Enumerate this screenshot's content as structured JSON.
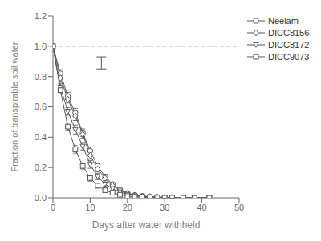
{
  "chart_data": {
    "type": "line",
    "xlabel": "Days after water withheld",
    "ylabel": "Fraction of transpirable soil water",
    "xlim": [
      0,
      50
    ],
    "ylim": [
      0,
      1.2
    ],
    "xticks": [
      0,
      10,
      20,
      30,
      40,
      50
    ],
    "yticks": [
      {
        "value": 0.0,
        "label": "0.0"
      },
      0.2,
      0.4,
      0.6,
      0.8,
      {
        "value": 1.0,
        "label": "1.0"
      },
      1.2
    ],
    "grid": false,
    "legend": "upper right",
    "x": [
      0,
      2,
      4,
      6,
      8,
      10,
      12,
      14,
      16,
      18,
      20,
      22,
      24,
      26,
      28,
      30,
      32,
      35,
      38,
      42
    ],
    "series": [
      {
        "name": "Neelam",
        "color": "#555555",
        "marker": "circle",
        "values": [
          1.0,
          0.82,
          0.67,
          0.56,
          0.43,
          0.31,
          0.21,
          0.14,
          0.09,
          0.055,
          0.03,
          0.018,
          0.012,
          0.008,
          0.005,
          0.003,
          0.002,
          0.001,
          0.001,
          0.0
        ],
        "error": [
          0.0,
          0.025,
          0.025,
          0.03,
          0.025,
          0.025,
          0.02,
          0.015,
          0.01,
          0.008,
          0.005,
          0.003,
          0.002,
          0.002,
          0.001,
          0.001,
          0.001,
          0.0,
          0.0,
          0.0
        ]
      },
      {
        "name": "DICC8156",
        "color": "#555555",
        "marker": "diamond",
        "values": [
          1.0,
          0.79,
          0.65,
          0.54,
          0.42,
          0.28,
          0.19,
          0.13,
          0.08,
          0.05,
          0.028,
          0.016,
          0.01,
          0.007,
          0.004,
          0.003,
          0.002,
          0.001,
          0.001,
          0.0
        ],
        "error": [
          0.0,
          0.025,
          0.025,
          0.03,
          0.025,
          0.025,
          0.02,
          0.015,
          0.01,
          0.008,
          0.005,
          0.003,
          0.002,
          0.002,
          0.001,
          0.001,
          0.001,
          0.0,
          0.0,
          0.0
        ]
      },
      {
        "name": "DICC8172",
        "color": "#555555",
        "marker": "triangle_down",
        "values": [
          1.0,
          0.73,
          0.57,
          0.45,
          0.34,
          0.22,
          0.14,
          0.09,
          0.06,
          0.038,
          0.022,
          0.013,
          0.008,
          0.005,
          0.003,
          0.002,
          0.001,
          0.001,
          0.0,
          0.0
        ],
        "error": [
          0.0,
          0.025,
          0.025,
          0.03,
          0.025,
          0.025,
          0.02,
          0.015,
          0.01,
          0.008,
          0.005,
          0.003,
          0.002,
          0.002,
          0.001,
          0.001,
          0.001,
          0.0,
          0.0,
          0.0
        ]
      },
      {
        "name": "DICC9073",
        "color": "#555555",
        "marker": "square",
        "values": [
          1.0,
          0.71,
          0.47,
          0.32,
          0.21,
          0.13,
          0.08,
          0.05,
          0.033,
          0.02,
          0.012,
          0.007,
          0.005,
          0.003,
          0.002,
          0.001,
          0.001,
          0.0,
          0.0,
          0.0
        ],
        "error": [
          0.0,
          0.025,
          0.025,
          0.025,
          0.02,
          0.02,
          0.015,
          0.012,
          0.008,
          0.006,
          0.004,
          0.003,
          0.002,
          0.001,
          0.001,
          0.001,
          0.0,
          0.0,
          0.0,
          0.0
        ]
      }
    ],
    "hlines": [
      {
        "y": 1.0,
        "line_style": "dashed",
        "color": "#888888"
      }
    ],
    "error_bar": {
      "x": 13,
      "y": 0.89,
      "error": 0.04,
      "color": "#555555"
    }
  }
}
